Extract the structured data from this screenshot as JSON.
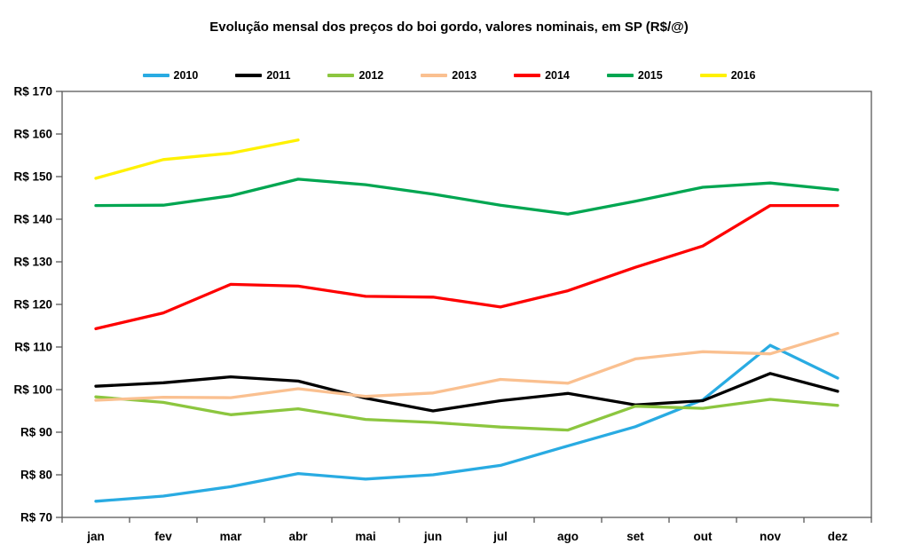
{
  "chart_data": {
    "type": "line",
    "title": "Evolução mensal dos preços do boi gordo, valores nominais, em SP (R$/@)",
    "categories": [
      "jan",
      "fev",
      "mar",
      "abr",
      "mai",
      "jun",
      "jul",
      "ago",
      "set",
      "out",
      "nov",
      "dez"
    ],
    "y_axis": {
      "min": 70,
      "max": 170,
      "step": 10,
      "tick_labels": [
        "R$ 170",
        "R$ 160",
        "R$ 150",
        "R$ 140",
        "R$ 130",
        "R$ 120",
        "R$ 110",
        "R$ 100",
        "R$ 90",
        "R$ 80",
        "R$ 70"
      ]
    },
    "grid": false,
    "legend_position": "top",
    "axis_color": "#595959",
    "series": [
      {
        "name": "2010",
        "color": "#29ABE2",
        "values": [
          73.8,
          75.0,
          77.2,
          80.3,
          79.0,
          80.0,
          82.2,
          86.8,
          91.3,
          97.6,
          110.4,
          102.7
        ]
      },
      {
        "name": "2011",
        "color": "#000000",
        "values": [
          100.8,
          101.6,
          103.0,
          102.0,
          98.0,
          95.0,
          97.4,
          99.1,
          96.4,
          97.4,
          103.8,
          99.6
        ]
      },
      {
        "name": "2012",
        "color": "#8CC63F",
        "values": [
          98.3,
          97.0,
          94.1,
          95.5,
          93.0,
          92.3,
          91.2,
          90.5,
          96.1,
          95.6,
          97.7,
          96.3
        ]
      },
      {
        "name": "2013",
        "color": "#FAC090",
        "values": [
          97.5,
          98.2,
          98.1,
          100.2,
          98.4,
          99.2,
          102.4,
          101.5,
          107.2,
          108.9,
          108.4,
          113.2
        ]
      },
      {
        "name": "2014",
        "color": "#FE0000",
        "values": [
          114.3,
          118.0,
          124.7,
          124.3,
          121.9,
          121.7,
          119.4,
          123.2,
          128.7,
          133.7,
          143.2,
          143.2
        ]
      },
      {
        "name": "2015",
        "color": "#00A651",
        "values": [
          143.2,
          143.3,
          145.5,
          149.4,
          148.1,
          145.9,
          143.3,
          141.2,
          144.2,
          147.5,
          148.5,
          146.9
        ]
      },
      {
        "name": "2016",
        "color": "#FFF100",
        "values": [
          149.6,
          154.0,
          155.5,
          158.6,
          null,
          null,
          null,
          null,
          null,
          null,
          null,
          null
        ]
      }
    ]
  }
}
